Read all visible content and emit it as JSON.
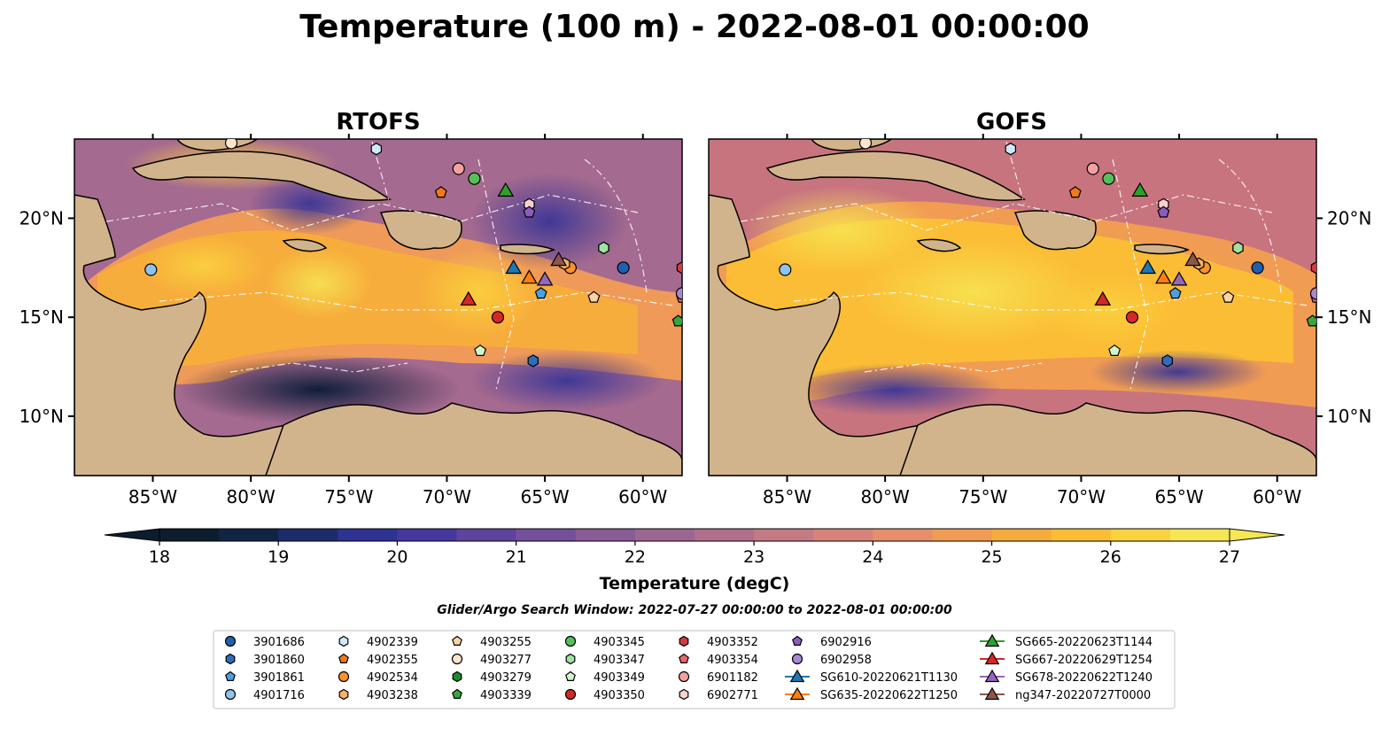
{
  "chart_data": {
    "type": "heatmap",
    "title": "Temperature (100 m) - 2022-08-01 00:00:00",
    "panels": [
      {
        "title": "RTOFS",
        "panel_key": "rtofs"
      },
      {
        "title": "GOFS",
        "panel_key": "gofs"
      }
    ],
    "lon_range": [
      -89,
      -58
    ],
    "lat_range": [
      7,
      24
    ],
    "x_ticks": [
      -85,
      -80,
      -75,
      -70,
      -65,
      -60
    ],
    "x_tick_labels": [
      "85°W",
      "80°W",
      "75°W",
      "70°W",
      "65°W",
      "60°W"
    ],
    "y_ticks": [
      20,
      15,
      10
    ],
    "y_tick_labels": [
      "20°N",
      "15°N",
      "10°N"
    ],
    "colorbar": {
      "label": "Temperature (degC)",
      "min": 18,
      "max": 27,
      "ticks": [
        18,
        19,
        20,
        21,
        22,
        23,
        24,
        25,
        26,
        27
      ],
      "tick_labels": [
        "18",
        "19",
        "20",
        "21",
        "22",
        "23",
        "24",
        "25",
        "26",
        "27"
      ],
      "colors": [
        "#0b1d2e",
        "#122446",
        "#1c2c6b",
        "#2f3394",
        "#46399e",
        "#5e449e",
        "#74509b",
        "#895b97",
        "#9c6692",
        "#b0708c",
        "#c47a83",
        "#d7837a",
        "#e78f6a",
        "#f19c53",
        "#f7aa3e",
        "#fbbd36",
        "#fad13e",
        "#f6e653"
      ],
      "extend": "both"
    },
    "subtitle": "Glider/Argo Search Window: 2022-07-27 00:00:00 to 2022-08-01 00:00:00",
    "series": [
      {
        "name": "3901686",
        "marker": "circle",
        "color": "#1f5fb0",
        "lon": -61,
        "lat": 17.5
      },
      {
        "name": "3901860",
        "marker": "hexagon",
        "color": "#2a6fbd",
        "lon": -65.6,
        "lat": 12.8
      },
      {
        "name": "3901861",
        "marker": "pentagon",
        "color": "#4aa0e0",
        "lon": -65.2,
        "lat": 16.2
      },
      {
        "name": "4901716",
        "marker": "circle",
        "color": "#8cc3ef",
        "lon": -85.1,
        "lat": 17.4
      },
      {
        "name": "4902339",
        "marker": "hexagon",
        "color": "#cfe8fb",
        "lon": -73.6,
        "lat": 23.5
      },
      {
        "name": "4902355",
        "marker": "pentagon",
        "color": "#ee7a1a",
        "lon": -70.3,
        "lat": 21.3
      },
      {
        "name": "4902534",
        "marker": "circle",
        "color": "#f8922c",
        "lon": -63.7,
        "lat": 17.5
      },
      {
        "name": "4903238",
        "marker": "hexagon",
        "color": "#f8b06a",
        "lon": -64.0,
        "lat": 17.7
      },
      {
        "name": "4903255",
        "marker": "pentagon",
        "color": "#fbd3a6",
        "lon": -62.5,
        "lat": 16.0
      },
      {
        "name": "4903277",
        "marker": "circle",
        "color": "#fde5cc",
        "lon": -81.0,
        "lat": 23.8
      },
      {
        "name": "4903279",
        "marker": "hexagon",
        "color": "#1e8a2e",
        "lon": -62.0,
        "lat": 18.5
      },
      {
        "name": "4903339",
        "marker": "pentagon",
        "color": "#3aa53a",
        "lon": -58.2,
        "lat": 14.8
      },
      {
        "name": "4903345",
        "marker": "circle",
        "color": "#55c05a",
        "lon": -68.6,
        "lat": 22.0
      },
      {
        "name": "4903347",
        "marker": "hexagon",
        "color": "#9fe3a3",
        "lon": -62.0,
        "lat": 18.5
      },
      {
        "name": "4903349",
        "marker": "pentagon",
        "color": "#d2f4cd",
        "lon": -68.3,
        "lat": 13.3
      },
      {
        "name": "4903350",
        "marker": "circle",
        "color": "#d62728",
        "lon": -67.4,
        "lat": 15.0
      },
      {
        "name": "4903352",
        "marker": "hexagon",
        "color": "#d43b3b",
        "lon": -58.0,
        "lat": 17.5
      },
      {
        "name": "4903354",
        "marker": "pentagon",
        "color": "#e8696a",
        "lon": -58.0,
        "lat": 16.0
      },
      {
        "name": "6901182",
        "marker": "circle",
        "color": "#f3a0a0",
        "lon": -69.4,
        "lat": 22.5
      },
      {
        "name": "6902771",
        "marker": "hexagon",
        "color": "#fbd0d0",
        "lon": -65.8,
        "lat": 20.7
      },
      {
        "name": "6902916",
        "marker": "pentagon",
        "color": "#8a5cc0",
        "lon": -65.8,
        "lat": 20.3
      },
      {
        "name": "6902958",
        "marker": "circle",
        "color": "#a887d6",
        "lon": -58.0,
        "lat": 16.2
      },
      {
        "name": "SG610-20220621T1130",
        "marker": "triangle",
        "color": "#1f77b4",
        "lon": -66.6,
        "lat": 17.5
      },
      {
        "name": "SG635-20220622T1250",
        "marker": "triangle",
        "color": "#ff7f0e",
        "lon": -65.8,
        "lat": 17.0
      },
      {
        "name": "SG665-20220623T1144",
        "marker": "triangle",
        "color": "#2ca02c",
        "lon": -67.0,
        "lat": 21.4
      },
      {
        "name": "SG667-20220629T1254",
        "marker": "triangle",
        "color": "#d62728",
        "lon": -68.9,
        "lat": 15.9
      },
      {
        "name": "SG678-20220622T1240",
        "marker": "triangle",
        "color": "#9467bd",
        "lon": -65.0,
        "lat": 16.9
      },
      {
        "name": "ng347-20220727T0000",
        "marker": "triangle",
        "color": "#8c564b",
        "lon": -64.3,
        "lat": 17.9
      }
    ]
  }
}
